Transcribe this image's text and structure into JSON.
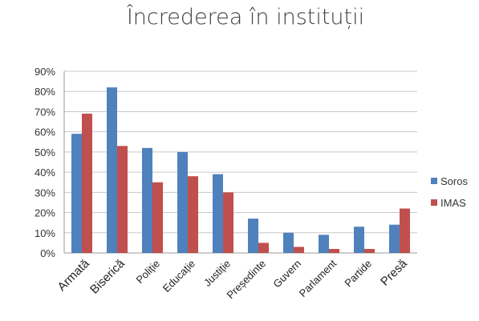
{
  "chart_data": {
    "type": "bar",
    "title": "Încrederea în instituții",
    "categories": [
      "Armată",
      "Biserică",
      "Poliție",
      "Educație",
      "Justiție",
      "Președinte",
      "Guvern",
      "Parlament",
      "Partide",
      "Presă"
    ],
    "series": [
      {
        "name": "Soros",
        "color": "#4F81BD",
        "values": [
          59,
          82,
          52,
          50,
          39,
          17,
          10,
          9,
          13,
          14
        ]
      },
      {
        "name": "IMAS",
        "color": "#C0504D",
        "values": [
          69,
          53,
          35,
          38,
          30,
          5,
          3,
          2,
          2,
          22
        ]
      }
    ],
    "ylim": [
      0,
      90
    ],
    "yticks": [
      "0%",
      "10%",
      "20%",
      "30%",
      "40%",
      "50%",
      "60%",
      "70%",
      "80%",
      "90%"
    ],
    "grid": true,
    "legend": "right"
  }
}
